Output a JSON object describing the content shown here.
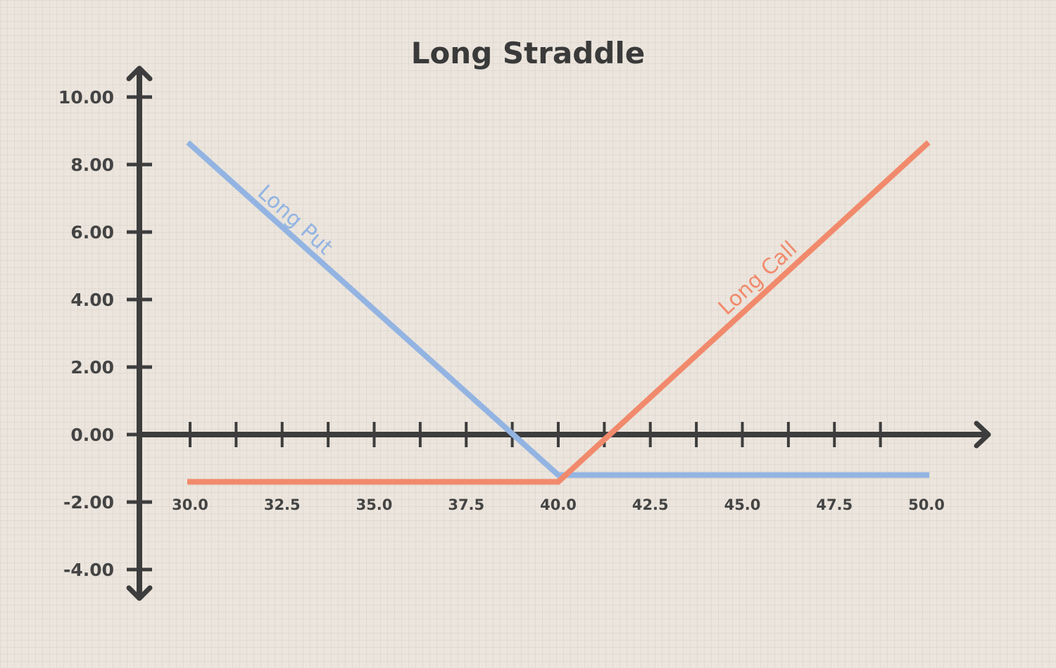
{
  "chart_data": {
    "type": "line",
    "title": "Long Straddle",
    "xlabel": "",
    "ylabel": "",
    "xlim": [
      30.0,
      50.0
    ],
    "ylim": [
      -4.0,
      10.0
    ],
    "x_ticks": [
      "30.0",
      "32.5",
      "35.0",
      "37.5",
      "40.0",
      "42.5",
      "45.0",
      "47.5",
      "50.0"
    ],
    "y_ticks": [
      "10.00",
      "8.00",
      "6.00",
      "4.00",
      "2.00",
      "0.00",
      "-2.00",
      "-4.00"
    ],
    "grid": true,
    "series": [
      {
        "name": "Long Put",
        "color": "#93b4e2",
        "x": [
          30.0,
          40.0,
          50.0
        ],
        "y": [
          8.6,
          -1.2,
          -1.2
        ]
      },
      {
        "name": "Long Call",
        "color": "#f18a6c",
        "x": [
          30.0,
          40.0,
          50.0
        ],
        "y": [
          -1.4,
          -1.4,
          8.6
        ]
      }
    ]
  }
}
